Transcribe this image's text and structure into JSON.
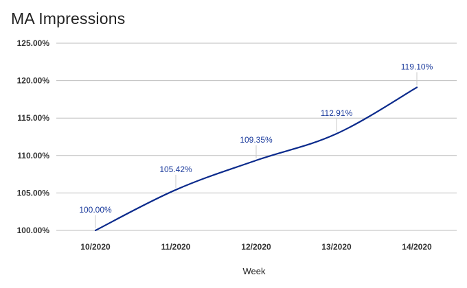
{
  "chart_data": {
    "type": "line",
    "title": "MA Impressions",
    "xlabel": "Week",
    "ylabel": "",
    "categories": [
      "10/2020",
      "11/2020",
      "12/2020",
      "13/2020",
      "14/2020"
    ],
    "series": [
      {
        "values": [
          100.0,
          105.42,
          109.35,
          112.91,
          119.1
        ],
        "labels": [
          "100.00%",
          "105.42%",
          "109.35%",
          "112.91%",
          "119.10%"
        ]
      }
    ],
    "ylim": [
      100,
      125
    ],
    "yticks": [
      100,
      105,
      110,
      115,
      120,
      125
    ],
    "ytick_labels": [
      "100.00%",
      "105.00%",
      "110.00%",
      "115.00%",
      "120.00%",
      "125.00%"
    ],
    "grid": true,
    "legend": "none",
    "line_color": "#0a2a8c",
    "grid_color": "#bdbdbd",
    "label_color": "#1a3a9c"
  }
}
